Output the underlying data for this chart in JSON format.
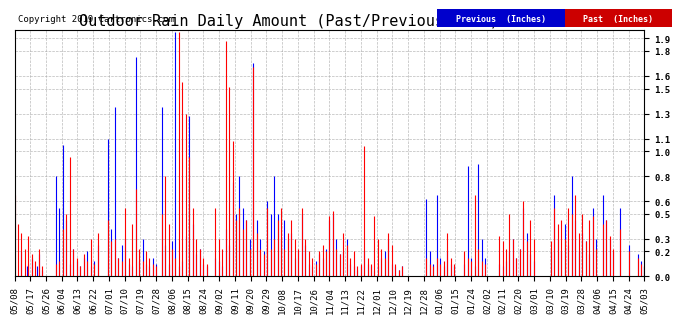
{
  "title": "Outdoor Rain Daily Amount (Past/Previous Year) 20190508",
  "copyright": "Copyright 2019 Cartronics.com",
  "legend_previous": "Previous  (Inches)",
  "legend_past": "Past  (Inches)",
  "legend_previous_color": "#0000FF",
  "legend_past_color": "#FF0000",
  "legend_previous_bg": "#0000CC",
  "legend_past_bg": "#CC0000",
  "background_color": "#FFFFFF",
  "plot_background": "#FFFFFF",
  "grid_color": "#AAAAAA",
  "yticks": [
    0.0,
    0.2,
    0.3,
    0.5,
    0.6,
    0.8,
    1.0,
    1.1,
    1.3,
    1.5,
    1.6,
    1.8,
    1.9
  ],
  "ylim": [
    0.0,
    1.97
  ],
  "xtick_labels": [
    "05/08",
    "05/17",
    "05/26",
    "06/04",
    "06/13",
    "06/22",
    "07/01",
    "07/10",
    "07/19",
    "07/28",
    "08/06",
    "08/15",
    "08/24",
    "09/02",
    "09/11",
    "09/20",
    "09/29",
    "10/08",
    "10/17",
    "10/26",
    "11/04",
    "11/13",
    "11/22",
    "12/01",
    "12/10",
    "12/19",
    "12/28",
    "01/06",
    "01/15",
    "01/24",
    "02/02",
    "02/11",
    "02/20",
    "03/01",
    "03/10",
    "03/19",
    "03/28",
    "04/06",
    "04/15",
    "04/24",
    "05/03"
  ],
  "num_points": 365,
  "title_fontsize": 11,
  "tick_fontsize": 6.5,
  "copyright_fontsize": 6.5
}
